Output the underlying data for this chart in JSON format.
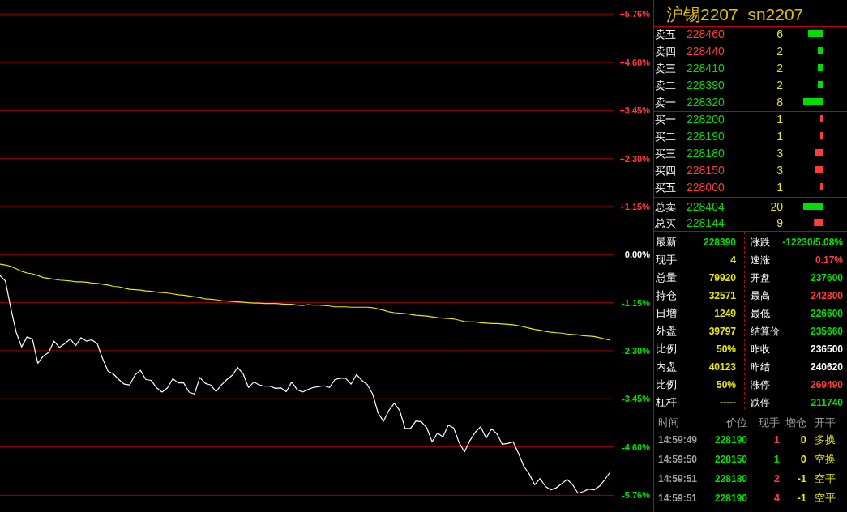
{
  "chart_data": [
    {
      "type": "line",
      "categories": [
        null,
        null,
        null,
        null,
        null,
        null,
        null,
        null,
        null,
        null,
        null,
        null,
        null,
        null,
        null,
        null,
        null,
        null,
        null,
        null,
        null,
        null,
        null,
        null,
        null,
        null,
        null,
        null,
        null,
        null,
        null,
        null,
        null,
        null,
        null,
        null,
        null,
        null,
        null,
        null,
        null,
        null,
        null,
        null,
        null,
        null,
        null,
        null,
        null,
        null,
        null,
        null,
        null,
        null,
        null,
        null,
        null,
        null,
        null,
        null,
        null,
        null,
        null,
        null,
        null,
        null,
        null,
        null,
        null,
        null,
        null,
        null,
        null,
        null,
        null,
        null,
        null,
        null,
        null,
        null,
        null,
        null,
        null,
        null,
        null,
        null,
        null,
        null,
        null,
        null,
        null,
        null,
        null,
        null,
        null,
        null,
        null,
        null,
        null,
        null,
        null,
        null,
        null,
        null,
        null,
        null,
        null,
        null,
        null,
        null,
        null,
        null,
        null,
        null
      ],
      "series": [
        {
          "color": "#ffffff",
          "values": [
            -0.5,
            -0.63,
            -1.28,
            -1.86,
            -2.21,
            -1.97,
            -2.02,
            -2.6,
            -2.43,
            -2.34,
            -2.07,
            -2.22,
            -2.13,
            -2.02,
            -2.18,
            -1.99,
            -2.07,
            -2.04,
            -2.13,
            -2.49,
            -2.79,
            -2.86,
            -2.99,
            -3.1,
            -3.12,
            -2.88,
            -2.77,
            -2.99,
            -3.01,
            -3.19,
            -3.29,
            -3.19,
            -2.97,
            -3.07,
            -3.07,
            -3.29,
            -3.34,
            -2.94,
            -3.08,
            -3.12,
            -3.28,
            -3.12,
            -2.99,
            -2.89,
            -2.7,
            -2.85,
            -3.18,
            -3.05,
            -3.12,
            -3.15,
            -3.15,
            -3.2,
            -3.19,
            -3.28,
            -3.05,
            -3.23,
            -3.29,
            -3.23,
            -3.18,
            -3.16,
            -3.14,
            -3.18,
            -2.99,
            -2.96,
            -2.96,
            -3.1,
            -2.87,
            -3.01,
            -3.11,
            -3.34,
            -3.79,
            -3.99,
            -3.73,
            -3.56,
            -3.73,
            -4.16,
            -4.16,
            -3.98,
            -4.0,
            -4.14,
            -4.48,
            -4.27,
            -4.36,
            -4.08,
            -4.15,
            -4.5,
            -4.72,
            -4.45,
            -4.25,
            -4.12,
            -4.39,
            -4.17,
            -4.29,
            -4.54,
            -4.52,
            -4.48,
            -4.76,
            -5.07,
            -5.25,
            -5.51,
            -5.36,
            -5.55,
            -5.63,
            -5.58,
            -5.48,
            -5.38,
            -5.5,
            -5.71,
            -5.67,
            -5.61,
            -5.63,
            -5.54,
            -5.38,
            -5.2
          ]
        },
        {
          "color": "#e8e800",
          "values": [
            -0.23,
            -0.25,
            -0.28,
            -0.34,
            -0.4,
            -0.44,
            -0.46,
            -0.5,
            -0.55,
            -0.57,
            -0.59,
            -0.61,
            -0.62,
            -0.63,
            -0.65,
            -0.65,
            -0.66,
            -0.68,
            -0.69,
            -0.71,
            -0.73,
            -0.76,
            -0.77,
            -0.8,
            -0.83,
            -0.84,
            -0.85,
            -0.87,
            -0.88,
            -0.9,
            -0.91,
            -0.92,
            -0.94,
            -0.96,
            -0.97,
            -0.99,
            -1.01,
            -1.03,
            -1.06,
            -1.07,
            -1.08,
            -1.1,
            -1.11,
            -1.12,
            -1.13,
            -1.14,
            -1.15,
            -1.16,
            -1.16,
            -1.17,
            -1.17,
            -1.17,
            -1.18,
            -1.19,
            -1.19,
            -1.21,
            -1.22,
            -1.2,
            -1.21,
            -1.21,
            -1.22,
            -1.23,
            -1.25,
            -1.25,
            -1.25,
            -1.26,
            -1.26,
            -1.26,
            -1.26,
            -1.27,
            -1.3,
            -1.33,
            -1.37,
            -1.39,
            -1.4,
            -1.41,
            -1.43,
            -1.45,
            -1.46,
            -1.47,
            -1.49,
            -1.51,
            -1.52,
            -1.53,
            -1.54,
            -1.57,
            -1.6,
            -1.61,
            -1.61,
            -1.63,
            -1.64,
            -1.65,
            -1.65,
            -1.66,
            -1.67,
            -1.68,
            -1.7,
            -1.73,
            -1.76,
            -1.79,
            -1.81,
            -1.84,
            -1.86,
            -1.87,
            -1.88,
            -1.9,
            -1.91,
            -1.92,
            -1.94,
            -1.95,
            -1.96,
            -1.99,
            -2.02,
            -2.05
          ]
        }
      ],
      "ylim": [
        -5.85,
        5.9
      ],
      "yticks": [
        {
          "value": 5.76,
          "label": "+5.76%"
        },
        {
          "value": 4.6,
          "label": "+4.60%"
        },
        {
          "value": 3.45,
          "label": "+3.45%"
        },
        {
          "value": 2.3,
          "label": "+2.30%"
        },
        {
          "value": 1.15,
          "label": "+1.15%"
        },
        {
          "value": 0,
          "label": "0.00%"
        },
        {
          "value": -1.15,
          "label": "-1.15%"
        },
        {
          "value": -2.3,
          "label": "-2.30%"
        },
        {
          "value": -3.45,
          "label": "-3.45%"
        },
        {
          "value": -4.6,
          "label": "-4.60%"
        },
        {
          "value": -5.76,
          "label": "-5.76%"
        }
      ],
      "grid": "y"
    },
    {
      "type": "bar",
      "orientation": "horizontal",
      "title": "沪锡2207  sn2207",
      "categories": [
        "228460",
        "228440",
        "228410",
        "228390",
        "228320",
        "228200",
        "228190",
        "228180",
        "228150",
        "228000"
      ],
      "values": [
        6,
        2,
        2,
        2,
        8,
        1,
        1,
        3,
        3,
        1
      ],
      "colors": [
        "#00dd00",
        "#00dd00",
        "#00dd00",
        "#00dd00",
        "#00dd00",
        "#ff3b3b",
        "#ff3b3b",
        "#ff3b3b",
        "#ff3b3b",
        "#ff3b3b"
      ],
      "data_labels": true,
      "annotations": [
        "卖五",
        "卖四",
        "卖三",
        "卖二",
        "卖一",
        "买一",
        "买二",
        "买三",
        "买四",
        "买五"
      ]
    },
    {
      "type": "bar",
      "orientation": "horizontal",
      "categories": [
        "228404",
        "228144"
      ],
      "values": [
        20,
        9
      ],
      "colors": [
        "#00dd00",
        "#ff3b3b"
      ],
      "data_labels": true,
      "annotations": [
        "总卖",
        "总买"
      ]
    },
    {
      "type": "other",
      "annotations": [
        "最新",
        "228390",
        "涨跌",
        "-12230/5.08%",
        "现手",
        "4",
        "速涨",
        "0.17%",
        "总量",
        "79920",
        "开盘",
        "237600",
        "持仓",
        "32571",
        "最高",
        "242800",
        "日增",
        "1249",
        "最低",
        "226600",
        "外盘",
        "39797",
        "结算价",
        "235660",
        "比例",
        "50%",
        "昨收",
        "236500",
        "内盘",
        "40123",
        "昨结",
        "240620",
        "比例",
        "50%",
        "涨停",
        "269490",
        "杠杆",
        "-----",
        "跌停",
        "211740",
        "时间",
        "价位",
        "现手",
        "增仓",
        "开平",
        "14:59:49",
        "228190",
        "1",
        "0",
        "多换",
        "14:59:50",
        "228150",
        "1",
        "0",
        "空换",
        "14:59:51",
        "228180",
        "2",
        "-1",
        "空平",
        "14:59:51",
        "228190",
        "4",
        "-1",
        "空平"
      ]
    }
  ]
}
